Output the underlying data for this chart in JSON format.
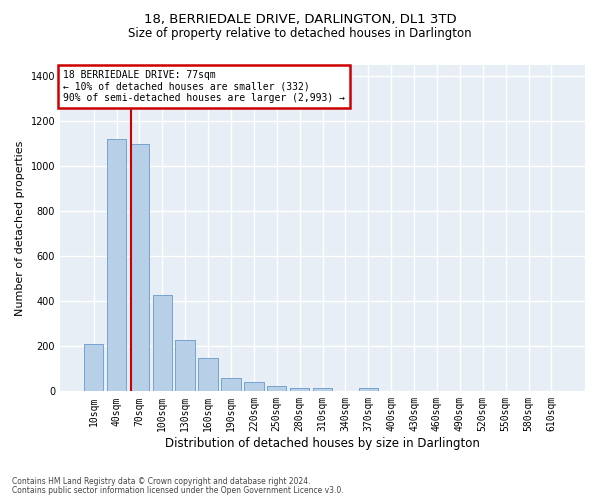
{
  "title": "18, BERRIEDALE DRIVE, DARLINGTON, DL1 3TD",
  "subtitle": "Size of property relative to detached houses in Darlington",
  "xlabel": "Distribution of detached houses by size in Darlington",
  "ylabel": "Number of detached properties",
  "footer_line1": "Contains HM Land Registry data © Crown copyright and database right 2024.",
  "footer_line2": "Contains public sector information licensed under the Open Government Licence v3.0.",
  "categories": [
    "10sqm",
    "40sqm",
    "70sqm",
    "100sqm",
    "130sqm",
    "160sqm",
    "190sqm",
    "220sqm",
    "250sqm",
    "280sqm",
    "310sqm",
    "340sqm",
    "370sqm",
    "400sqm",
    "430sqm",
    "460sqm",
    "490sqm",
    "520sqm",
    "550sqm",
    "580sqm",
    "610sqm"
  ],
  "bar_heights": [
    210,
    1120,
    1100,
    430,
    230,
    150,
    60,
    40,
    25,
    15,
    15,
    0,
    15,
    0,
    0,
    0,
    0,
    0,
    0,
    0,
    0
  ],
  "bar_color": "#b8cfe8",
  "bar_edge_color": "#6699cc",
  "vline_index": 1.65,
  "vline_color": "#cc0000",
  "annotation_text": "18 BERRIEDALE DRIVE: 77sqm\n← 10% of detached houses are smaller (332)\n90% of semi-detached houses are larger (2,993) →",
  "annotation_box_edgecolor": "#cc0000",
  "ylim": [
    0,
    1450
  ],
  "yticks": [
    0,
    200,
    400,
    600,
    800,
    1000,
    1200,
    1400
  ],
  "background_color": "#e8eef5",
  "grid_color": "#ffffff",
  "title_fontsize": 9.5,
  "subtitle_fontsize": 8.5,
  "tick_fontsize": 7,
  "ylabel_fontsize": 8,
  "xlabel_fontsize": 8.5,
  "annotation_fontsize": 7,
  "footer_fontsize": 5.5
}
